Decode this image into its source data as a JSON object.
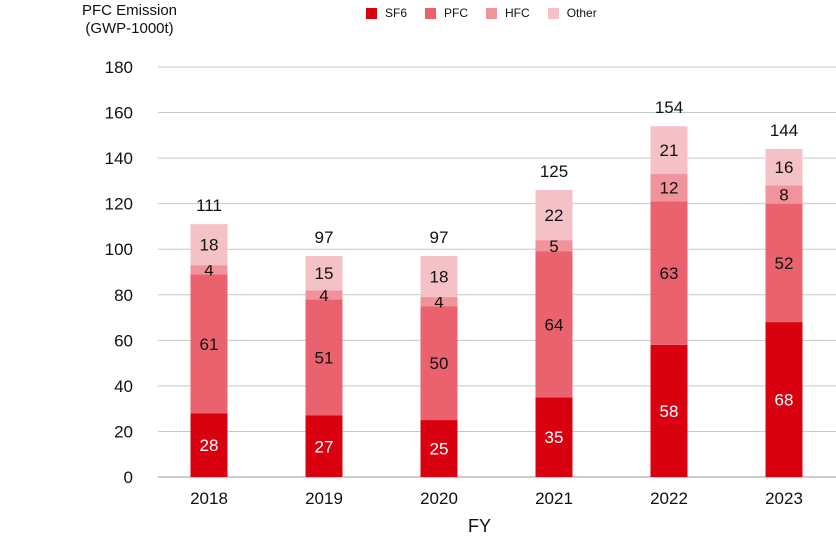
{
  "chart_data": {
    "type": "bar",
    "stacked": true,
    "title": "",
    "ylabel_line1": "PFC Emission",
    "ylabel_line2": "(GWP-1000t)",
    "xlabel": "FY",
    "categories": [
      "2018",
      "2019",
      "2020",
      "2021",
      "2022",
      "2023"
    ],
    "ylim": [
      0,
      180
    ],
    "yticks": [
      "0",
      "20",
      "40",
      "60",
      "80",
      "100",
      "120",
      "140",
      "160",
      "180"
    ],
    "grid": true,
    "legend_position": "top",
    "series": [
      {
        "name": "SF6",
        "color": "#d9000f",
        "label_color": "#ffffff",
        "values": [
          28,
          27,
          25,
          35,
          58,
          68
        ]
      },
      {
        "name": "PFC",
        "color": "#e9626e",
        "label_color": "#111111",
        "values": [
          61,
          51,
          50,
          64,
          63,
          52
        ]
      },
      {
        "name": "HFC",
        "color": "#f0939b",
        "label_color": "#111111",
        "values": [
          4,
          4,
          4,
          5,
          12,
          8
        ]
      },
      {
        "name": "Other",
        "color": "#f4c1c6",
        "label_color": "#111111",
        "values": [
          18,
          15,
          18,
          22,
          21,
          16
        ]
      }
    ],
    "totals": [
      111,
      97,
      97,
      125,
      154,
      144
    ]
  }
}
